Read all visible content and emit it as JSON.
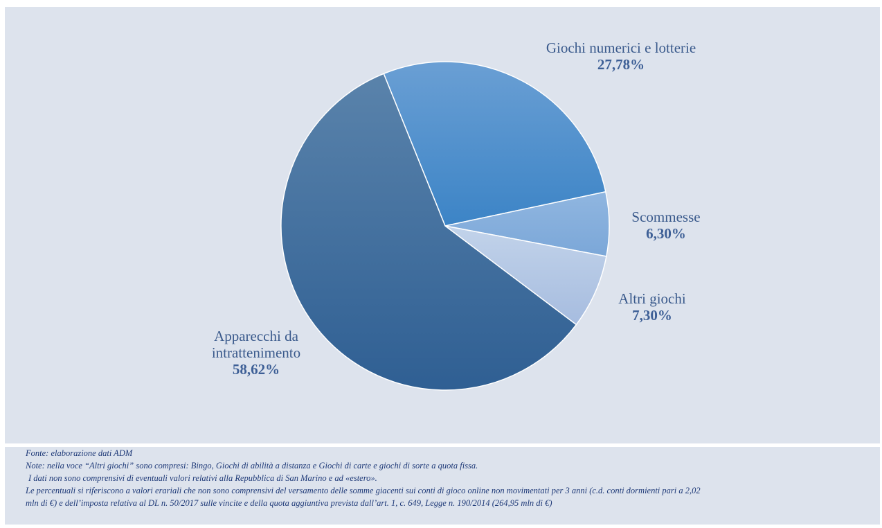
{
  "chart_data": {
    "type": "pie",
    "categories": [
      "Giochi numerici e lotterie",
      "Scommesse",
      "Altri giochi",
      "Apparecchi da\nintrattenimento"
    ],
    "values": [
      27.78,
      6.3,
      7.3,
      58.62
    ],
    "labels": [
      "27,78%",
      "6,30%",
      "7,30%",
      "58,62%"
    ],
    "colors": [
      "#4a8cc9",
      "#86b0de",
      "#b4c9e6",
      "#3f6fa2"
    ],
    "start_angle_deg": -22,
    "legend": "none",
    "title": ""
  },
  "notes": [
    "Fonte: elaborazione dati ADM",
    "Note: nella voce “Altri giochi” sono compresi: Bingo, Giochi di abilità a distanza e Giochi di carte e giochi di sorte a quota fissa.",
    "I dati non sono comprensivi di eventuali valori relativi alla Repubblica di San Marino e ad «estero».",
    "Le percentuali si riferiscono a valori erariali che non sono comprensivi del versamento delle somme giacenti sui conti di gioco online non movimentati per 3 anni (c.d. conti dormienti pari a 2,02",
    "mln di €) e dell’imposta relativa al DL n. 50/2017 sulle vincite e della quota aggiuntiva prevista dall’art. 1, c. 649, Legge n. 190/2014 (264,95 mln di €)"
  ]
}
